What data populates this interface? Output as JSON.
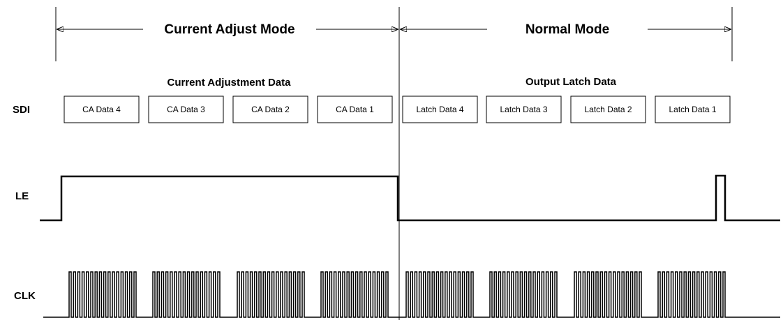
{
  "modes": [
    {
      "label": "Current Adjust Mode"
    },
    {
      "label": "Normal Mode"
    }
  ],
  "sections": [
    {
      "label": "Current Adjustment Data"
    },
    {
      "label": "Output Latch Data"
    }
  ],
  "signals": [
    {
      "label": "SDI"
    },
    {
      "label": "LE"
    },
    {
      "label": "CLK"
    }
  ],
  "boxes": [
    {
      "label": "CA Data 4"
    },
    {
      "label": "CA Data 3"
    },
    {
      "label": "CA Data 2"
    },
    {
      "label": "CA Data 1"
    },
    {
      "label": "Latch Data 4"
    },
    {
      "label": "Latch Data 3"
    },
    {
      "label": "Latch Data 2"
    },
    {
      "label": "Latch Data 1"
    }
  ]
}
